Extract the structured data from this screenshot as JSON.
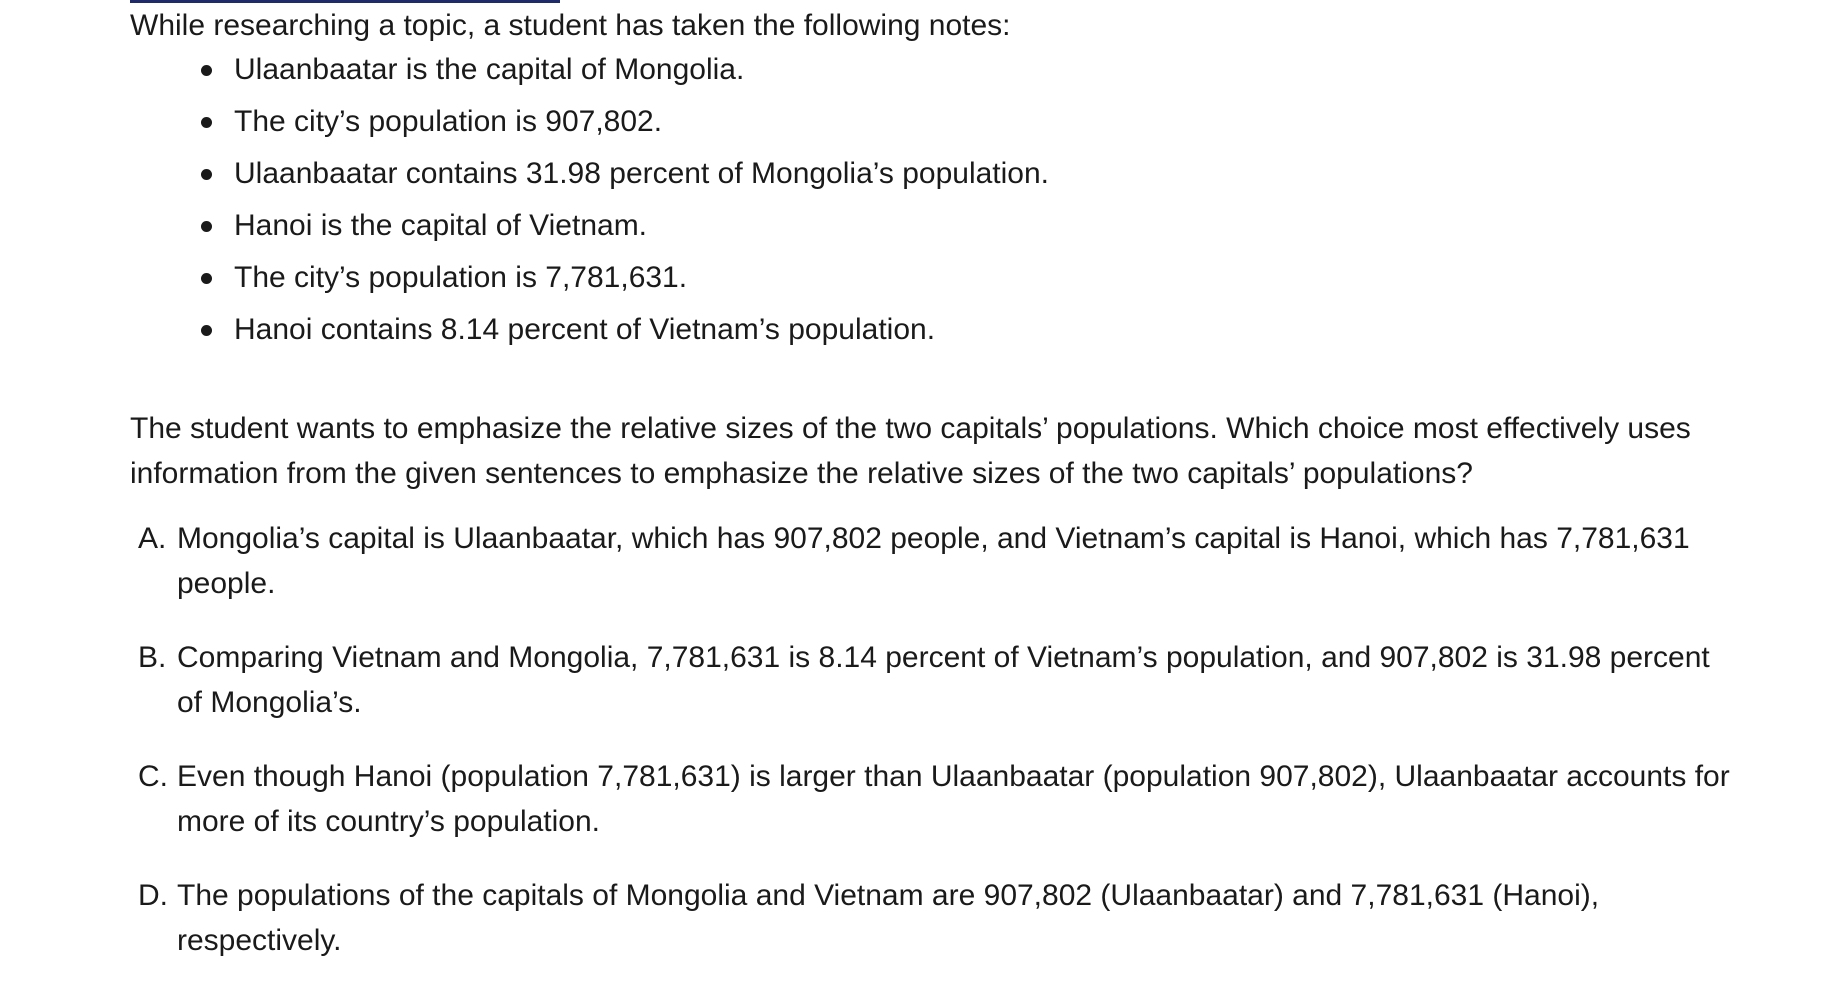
{
  "intro": "While researching a topic, a student has taken the following notes:",
  "notes": [
    "Ulaanbaatar is the capital of Mongolia.",
    "The city’s population is 907,802.",
    "Ulaanbaatar contains 31.98 percent of Mongolia’s population.",
    "Hanoi is the capital of Vietnam.",
    "The city’s population is 7,781,631.",
    "Hanoi contains 8.14 percent of Vietnam’s population."
  ],
  "question": "The student wants to emphasize the relative sizes of the two capitals’ populations. Which choice most effectively uses information from the given sentences to emphasize the relative sizes of the two capitals’ populations?",
  "choices": [
    {
      "letter": "A.",
      "text": "Mongolia’s capital is Ulaanbaatar, which has 907,802 people, and Vietnam’s capital is Hanoi, which has 7,781,631 people."
    },
    {
      "letter": "B.",
      "text": "Comparing Vietnam and Mongolia, 7,781,631 is 8.14 percent of Vietnam’s population, and 907,802 is 31.98 percent of Mongolia’s."
    },
    {
      "letter": "C.",
      "text": "Even though Hanoi (population 7,781,631) is larger than Ulaanbaatar (population 907,802), Ulaanbaatar accounts for more of its country’s population."
    },
    {
      "letter": "D.",
      "text": "The populations of the capitals of Mongolia and Vietnam are 907,802 (Ulaanbaatar) and 7,781,631 (Hanoi), respectively."
    }
  ],
  "colors": {
    "text": "#1a1a1a",
    "top_rule": "#1f2a6b",
    "background": "#ffffff"
  }
}
